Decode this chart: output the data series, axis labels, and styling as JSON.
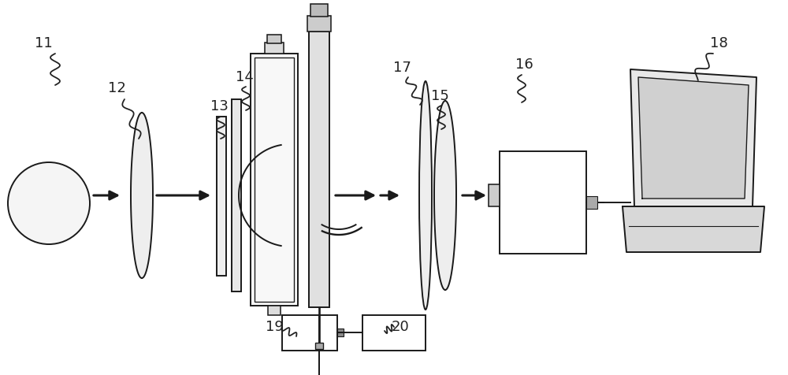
{
  "bg_color": "#ffffff",
  "lc": "#1a1a1a",
  "gray_fill": "#e0e0e0",
  "light_gray": "#f0f0f0",
  "label_color": "#222222",
  "fs": 13
}
